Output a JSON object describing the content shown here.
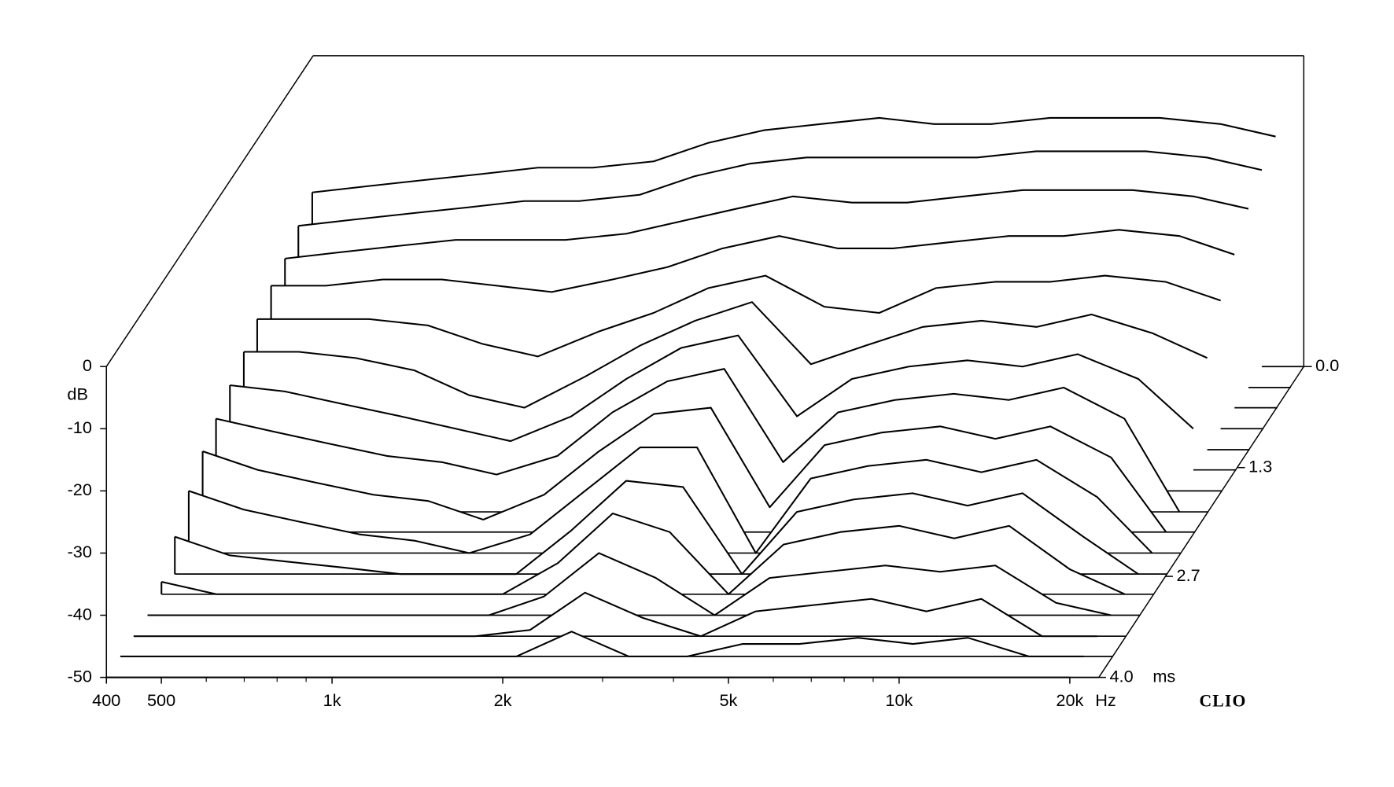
{
  "chart_data": {
    "type": "waterfall",
    "y_label": "dB",
    "x_unit": "Hz",
    "z_unit": "ms",
    "brand": "CLIO",
    "x": [
      400,
      500,
      630,
      800,
      1000,
      1250,
      1600,
      2000,
      2500,
      3150,
      4000,
      5000,
      6300,
      8000,
      10000,
      12500,
      16000,
      20000
    ],
    "xlim": [
      400,
      22500
    ],
    "xticks": [
      400,
      500,
      {
        "value": 1000,
        "label": "1k"
      },
      {
        "value": 2000,
        "label": "2k"
      },
      {
        "value": 5000,
        "label": "5k"
      },
      {
        "value": 10000,
        "label": "10k"
      },
      {
        "value": 20000,
        "label": "20k"
      }
    ],
    "xminorticks": [
      600,
      700,
      800,
      900,
      3000,
      4000,
      6000,
      7000,
      8000,
      9000
    ],
    "xscale": "log",
    "ylim": [
      -50,
      0
    ],
    "yticks": [
      0,
      -10,
      -20,
      -30,
      -40,
      -50
    ],
    "zlim": [
      0,
      4
    ],
    "zticks": [
      {
        "value": 0,
        "label": "0.0"
      },
      1.3,
      2.7,
      {
        "value": 4,
        "label": "4.0"
      }
    ],
    "color": "#000000",
    "series": [
      {
        "time": 0.0,
        "values": [
          -22,
          -21,
          -20,
          -19,
          -18,
          -18,
          -17,
          -14,
          -12,
          -11,
          -10,
          -11,
          -11,
          -10,
          -10,
          -10,
          -11,
          -13
        ]
      },
      {
        "time": 0.27,
        "values": [
          -24,
          -23,
          -22,
          -21,
          -20,
          -20,
          -19,
          -16,
          -14,
          -13,
          -13,
          -13,
          -13,
          -12,
          -12,
          -12,
          -13,
          -15
        ]
      },
      {
        "time": 0.53,
        "values": [
          -26,
          -25,
          -24,
          -23,
          -23,
          -23,
          -22,
          -20,
          -18,
          -16,
          -17,
          -17,
          -16,
          -15,
          -15,
          -15,
          -16,
          -18
        ]
      },
      {
        "time": 0.8,
        "values": [
          -27,
          -27,
          -26,
          -26,
          -27,
          -28,
          -26,
          -24,
          -21,
          -19,
          -21,
          -21,
          -20,
          -19,
          -19,
          -18,
          -19,
          -22
        ]
      },
      {
        "time": 1.07,
        "values": [
          -29,
          -29,
          -29,
          -30,
          -33,
          -35,
          -31,
          -28,
          -24,
          -22,
          -27,
          -28,
          -24,
          -23,
          -23,
          -22,
          -23,
          -26
        ]
      },
      {
        "time": 1.33,
        "values": [
          -31,
          -31,
          -32,
          -34,
          -38,
          -40,
          -35,
          -30,
          -26,
          -23,
          -33,
          -30,
          -27,
          -26,
          -27,
          -25,
          -28,
          -32
        ]
      },
      {
        "time": 1.6,
        "values": [
          -33,
          -34,
          -36,
          -38,
          -40,
          -42,
          -38,
          -32,
          -27,
          -25,
          -38,
          -32,
          -30,
          -29,
          -30,
          -28,
          -32,
          -40
        ]
      },
      {
        "time": 1.87,
        "values": [
          -35,
          -37,
          -39,
          -41,
          -42,
          -44,
          -41,
          -34,
          -29,
          -27,
          -42,
          -34,
          -32,
          -31,
          -32,
          -30,
          -35,
          -50
        ]
      },
      {
        "time": 2.13,
        "values": [
          -37,
          -40,
          -42,
          -44,
          -45,
          -48,
          -44,
          -37,
          -31,
          -30,
          -46,
          -36,
          -34,
          -33,
          -35,
          -33,
          -38,
          -50
        ]
      },
      {
        "time": 2.4,
        "values": [
          -40,
          -43,
          -45,
          -47,
          -48,
          -50,
          -47,
          -40,
          -33,
          -33,
          -50,
          -38,
          -36,
          -35,
          -37,
          -35,
          -41,
          -50
        ]
      },
      {
        "time": 2.67,
        "values": [
          -44,
          -47,
          -48,
          -49,
          -50,
          -50,
          -50,
          -43,
          -35,
          -36,
          -50,
          -40,
          -38,
          -37,
          -39,
          -37,
          -44,
          -50
        ]
      },
      {
        "time": 2.93,
        "values": [
          -48,
          -50,
          -50,
          -50,
          -50,
          -50,
          -50,
          -45,
          -37,
          -40,
          -50,
          -42,
          -40,
          -39,
          -41,
          -39,
          -46,
          -50
        ]
      },
      {
        "time": 3.2,
        "values": [
          -50,
          -50,
          -50,
          -50,
          -50,
          -50,
          -50,
          -47,
          -40,
          -44,
          -50,
          -44,
          -43,
          -42,
          -43,
          -42,
          -48,
          -50
        ]
      },
      {
        "time": 3.47,
        "values": [
          -50,
          -50,
          -50,
          -50,
          -50,
          -50,
          -50,
          -49,
          -43,
          -47,
          -50,
          -46,
          -45,
          -44,
          -46,
          -44,
          -50,
          -50
        ]
      },
      {
        "time": 3.73,
        "values": [
          -50,
          -50,
          -50,
          -50,
          -50,
          -50,
          -50,
          -50,
          -46,
          -50,
          -50,
          -48,
          -48,
          -47,
          -48,
          -47,
          -50,
          -50
        ]
      },
      {
        "time": 4.0,
        "values": [
          -50,
          -50,
          -50,
          -50,
          -50,
          -50,
          -50,
          -50,
          -50,
          -50,
          -50,
          -50,
          -50,
          -50,
          -50,
          -50,
          -50,
          -50
        ]
      }
    ]
  }
}
